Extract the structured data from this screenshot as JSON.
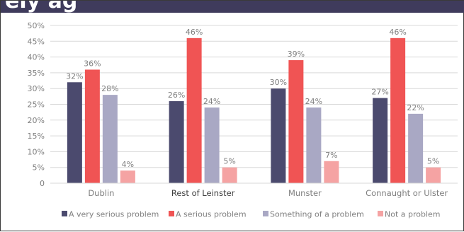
{
  "header": {
    "title_fragment": "ely ag"
  },
  "colors": {
    "header_bg": "#3f3b5c",
    "grid": "#d9d9d9",
    "axis_text": "#7f7f7f",
    "label_text": "#7f7f7f"
  },
  "chart_data": {
    "type": "bar",
    "title": "",
    "xlabel": "",
    "ylabel": "",
    "categories": [
      "Dublin",
      "Rest of Leinster",
      "Munster",
      "Connaught or Ulster"
    ],
    "y_ticks": [
      "0",
      "5%",
      "10%",
      "15%",
      "20%",
      "25%",
      "30%",
      "35%",
      "40%",
      "45%",
      "50%"
    ],
    "ylim": [
      0,
      50
    ],
    "grid": true,
    "legend_position": "bottom",
    "series": [
      {
        "name": "A very serious problem",
        "color": "#4b4a6e",
        "values": [
          32,
          26,
          30,
          27
        ],
        "labels": [
          "32%",
          "26%",
          "30%",
          "27%"
        ]
      },
      {
        "name": "A serious problem",
        "color": "#f05454",
        "values": [
          36,
          46,
          39,
          46
        ],
        "labels": [
          "36%",
          "46%",
          "39%",
          "46%"
        ]
      },
      {
        "name": "Something of a problem",
        "color": "#a9a8c4",
        "values": [
          28,
          24,
          24,
          22
        ],
        "labels": [
          "28%",
          "24%",
          "24%",
          "22%"
        ]
      },
      {
        "name": "Not a problem",
        "color": "#f5a3a3",
        "values": [
          4,
          5,
          7,
          5
        ],
        "labels": [
          "4%",
          "5%",
          "7%",
          "5%"
        ]
      }
    ]
  }
}
